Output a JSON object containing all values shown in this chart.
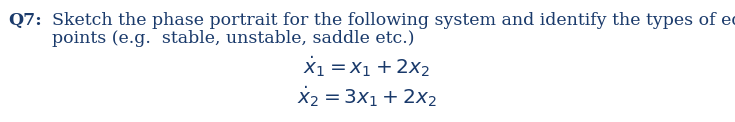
{
  "bg_color": "#ffffff",
  "text_color": "#1a3a6b",
  "label": "Q7:",
  "main_text_line1": "Sketch the phase portrait for the following system and identify the types of equilibrium",
  "main_text_line2": "points (e.g.  stable, unstable, saddle etc.)",
  "eq1": "$\\dot{x}_1 = x_1 + 2x_2$",
  "eq2": "$\\dot{x}_2 = 3x_1 + 2x_2$",
  "font_size_text": 12.5,
  "font_size_eq": 14.5,
  "figwidth": 7.35,
  "figheight": 1.22,
  "dpi": 100
}
